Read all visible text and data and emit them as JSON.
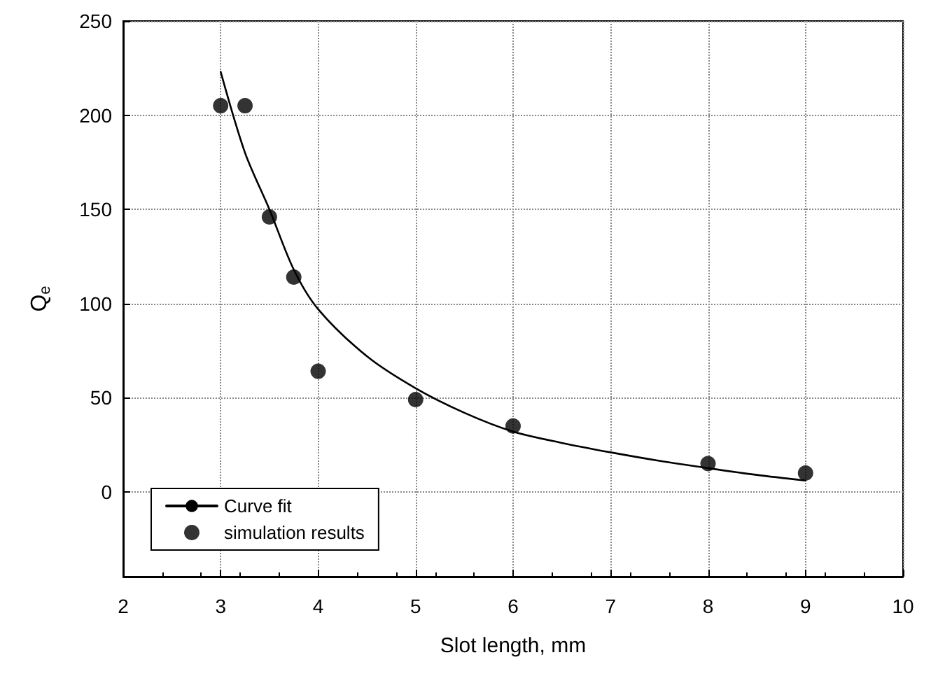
{
  "chart_data": {
    "type": "scatter",
    "xlabel": "Slot length, mm",
    "ylabel": "Q$_{e}$",
    "xlim": [
      2,
      10
    ],
    "xticks": [
      2,
      3,
      4,
      5,
      6,
      7,
      8,
      9,
      10
    ],
    "ylim": [
      -45,
      250
    ],
    "yticks": [
      0,
      50,
      100,
      150,
      200,
      250
    ],
    "grid": true,
    "legend": "bottom left",
    "series": [
      {
        "name": "Curve fit",
        "type": "line",
        "color": "#000000",
        "marker": "none",
        "line_style": "solid",
        "x": [
          3,
          3.25,
          3.5,
          3.75,
          4,
          4.5,
          5,
          5.5,
          6,
          6.5,
          7,
          7.5,
          8,
          8.5,
          9
        ],
        "values": [
          223,
          180,
          150,
          118,
          97,
          72,
          55,
          42,
          32,
          26,
          21,
          16.5,
          12.6,
          9,
          6
        ]
      },
      {
        "name": "simulation results",
        "color": "#000000",
        "marker": "circle",
        "x": [
          3,
          3.25,
          3.5,
          3.75,
          4,
          5,
          6,
          8,
          9
        ],
        "values": [
          205,
          205,
          146,
          114,
          64,
          49,
          35,
          15,
          10
        ]
      }
    ]
  }
}
